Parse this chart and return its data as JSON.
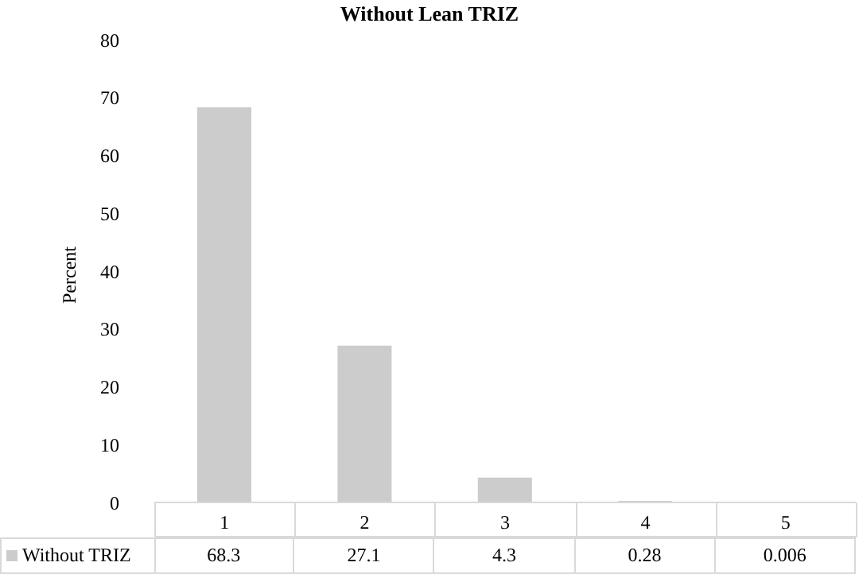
{
  "chart_data": {
    "type": "bar",
    "title": "Without Lean TRIZ",
    "ylabel": "Percent",
    "categories": [
      "1",
      "2",
      "3",
      "4",
      "5"
    ],
    "series": [
      {
        "name": "Without TRIZ",
        "color": "#cccccc",
        "values": [
          68.3,
          27.1,
          4.3,
          0.28,
          0.006
        ]
      }
    ],
    "ylim": [
      0,
      80
    ],
    "yticks": [
      0,
      10,
      20,
      30,
      40,
      50,
      60,
      70,
      80
    ],
    "data_labels": true,
    "legend": "bottom"
  }
}
